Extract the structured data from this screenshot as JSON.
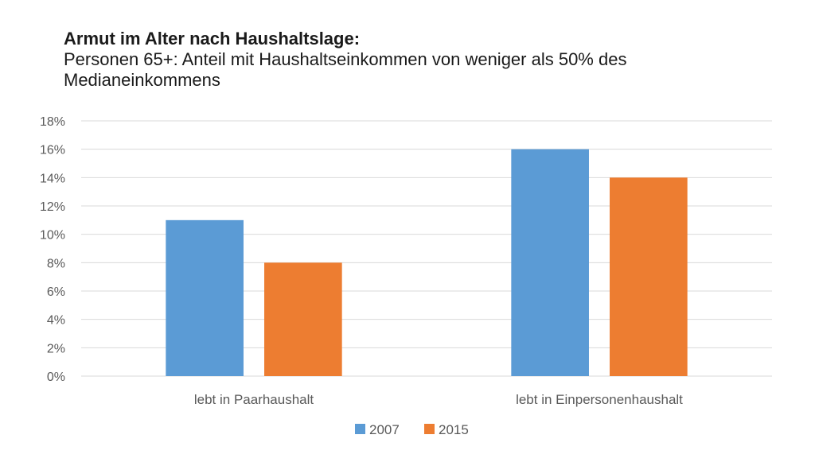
{
  "slide": {
    "title_bold": "Armut im Alter nach Haushaltslage:",
    "subtitle": "Personen 65+: Anteil mit Haushaltseinkommen von weniger als 50% des Medianeinkommens"
  },
  "chart_data": {
    "type": "bar",
    "title": "Armut im Alter nach Haushaltslage: Personen 65+: Anteil mit Haushaltseinkommen von weniger als 50% des Medianeinkommens",
    "categories": [
      "lebt in Paarhaushalt",
      "lebt in Einpersonenhaushalt"
    ],
    "series": [
      {
        "name": "2007",
        "color": "#5B9BD5",
        "values": [
          11,
          16
        ]
      },
      {
        "name": "2015",
        "color": "#ED7D31",
        "values": [
          8,
          14
        ]
      }
    ],
    "ylim": [
      0,
      18
    ],
    "yticks": [
      0,
      2,
      4,
      6,
      8,
      10,
      12,
      14,
      16,
      18
    ],
    "ytick_labels": [
      "0%",
      "2%",
      "4%",
      "6%",
      "8%",
      "10%",
      "12%",
      "14%",
      "16%",
      "18%"
    ],
    "xlabel": "",
    "ylabel": "",
    "grid": true,
    "legend": "bottom-center",
    "gridline_color": "#D9D9D9",
    "tick_label_color": "#595959"
  }
}
